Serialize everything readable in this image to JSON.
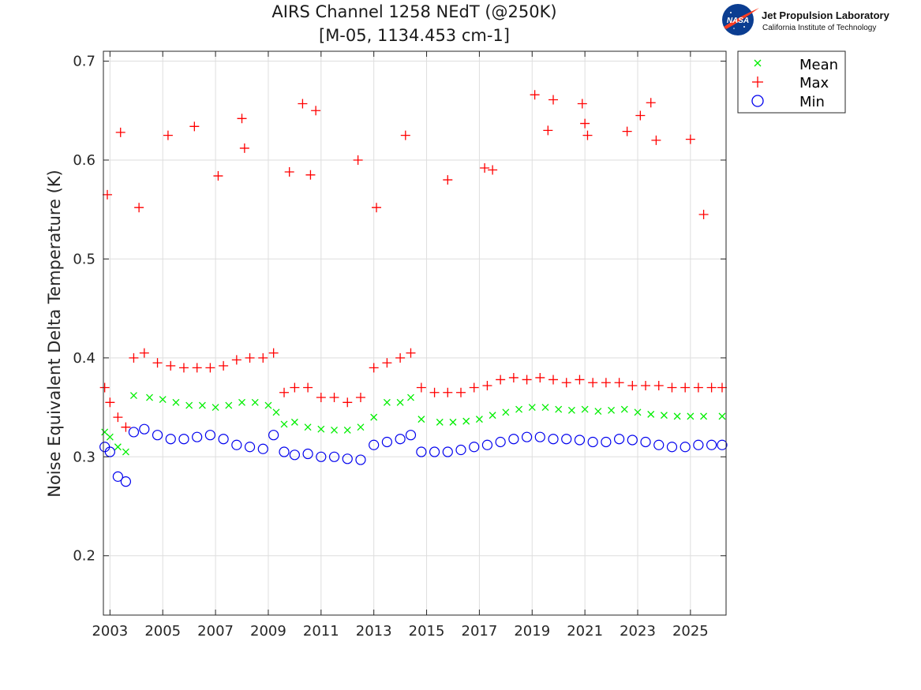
{
  "header": {
    "title_line1": "AIRS Channel 1258 NEdT (@250K)",
    "title_line2": "[M-05, 1134.453 cm-1]"
  },
  "logo": {
    "org_name": "Jet Propulsion Laboratory",
    "org_sub": "California Institute of Technology",
    "badge_text": "NASA",
    "colors": {
      "badge_blue": "#0b3d91",
      "swoosh_red": "#fc3d21"
    }
  },
  "chart_data": {
    "type": "scatter",
    "title": "AIRS Channel 1258 NEdT (@250K) [M-05, 1134.453 cm-1]",
    "xlabel": "",
    "ylabel": "Noise Equivalent Delta Temperature (K)",
    "xlim": [
      2002.75,
      2026.35
    ],
    "ylim": [
      0.14,
      0.71
    ],
    "x_ticks": [
      2003,
      2005,
      2007,
      2009,
      2011,
      2013,
      2015,
      2017,
      2019,
      2021,
      2023,
      2025
    ],
    "x_tick_labels": [
      "2003",
      "2005",
      "2007",
      "2009",
      "2011",
      "2013",
      "2015",
      "2017",
      "2019",
      "2021",
      "2023",
      "2025"
    ],
    "y_ticks": [
      0.2,
      0.3,
      0.4,
      0.5,
      0.6,
      0.7
    ],
    "y_tick_labels": [
      "0.2",
      "0.3",
      "0.4",
      "0.5",
      "0.6",
      "0.7"
    ],
    "grid": true,
    "legend_position": "top-right outside",
    "legend": [
      "Mean",
      "Max",
      "Min"
    ],
    "series": [
      {
        "name": "Mean",
        "marker": "x",
        "color": "#00ee00",
        "x": [
          2002.8,
          2003.0,
          2003.3,
          2003.6,
          2003.9,
          2004.5,
          2005.0,
          2005.5,
          2006.0,
          2006.5,
          2007.0,
          2007.5,
          2008.0,
          2008.5,
          2009.0,
          2009.3,
          2009.6,
          2010.0,
          2010.5,
          2011.0,
          2011.5,
          2012.0,
          2012.5,
          2013.0,
          2013.5,
          2014.0,
          2014.4,
          2014.8,
          2015.5,
          2016.0,
          2016.5,
          2017.0,
          2017.5,
          2018.0,
          2018.5,
          2019.0,
          2019.5,
          2020.0,
          2020.5,
          2021.0,
          2021.5,
          2022.0,
          2022.5,
          2023.0,
          2023.5,
          2024.0,
          2024.5,
          2025.0,
          2025.5,
          2026.2
        ],
        "y": [
          0.325,
          0.32,
          0.31,
          0.305,
          0.362,
          0.36,
          0.358,
          0.355,
          0.352,
          0.352,
          0.35,
          0.352,
          0.355,
          0.355,
          0.352,
          0.345,
          0.333,
          0.335,
          0.33,
          0.328,
          0.327,
          0.327,
          0.33,
          0.34,
          0.355,
          0.355,
          0.36,
          0.338,
          0.335,
          0.335,
          0.336,
          0.338,
          0.342,
          0.345,
          0.348,
          0.35,
          0.35,
          0.348,
          0.347,
          0.348,
          0.346,
          0.347,
          0.348,
          0.345,
          0.343,
          0.342,
          0.341,
          0.341,
          0.341,
          0.341
        ]
      },
      {
        "name": "Max",
        "marker": "+",
        "color": "#ff0000",
        "x": [
          2002.8,
          2003.0,
          2003.3,
          2003.6,
          2003.9,
          2004.3,
          2004.8,
          2005.3,
          2005.8,
          2006.3,
          2006.8,
          2007.3,
          2007.8,
          2008.3,
          2008.8,
          2009.2,
          2009.6,
          2010.0,
          2010.5,
          2011.0,
          2011.5,
          2012.0,
          2012.5,
          2013.0,
          2013.5,
          2014.0,
          2014.4,
          2014.8,
          2015.3,
          2015.8,
          2016.3,
          2016.8,
          2017.3,
          2017.8,
          2018.3,
          2018.8,
          2019.3,
          2019.8,
          2020.3,
          2020.8,
          2021.3,
          2021.8,
          2022.3,
          2022.8,
          2023.3,
          2023.8,
          2024.3,
          2024.8,
          2025.3,
          2025.8,
          2026.2,
          2002.9,
          2003.4,
          2004.1,
          2005.2,
          2006.2,
          2007.1,
          2008.0,
          2008.1,
          2009.8,
          2010.3,
          2010.6,
          2010.8,
          2012.4,
          2013.1,
          2014.2,
          2015.8,
          2017.2,
          2017.5,
          2019.1,
          2019.6,
          2019.8,
          2020.9,
          2021.0,
          2021.1,
          2022.6,
          2023.1,
          2023.5,
          2023.7,
          2025.0,
          2025.5
        ],
        "y": [
          0.37,
          0.355,
          0.34,
          0.33,
          0.4,
          0.405,
          0.395,
          0.392,
          0.39,
          0.39,
          0.39,
          0.392,
          0.398,
          0.4,
          0.4,
          0.405,
          0.365,
          0.37,
          0.37,
          0.36,
          0.36,
          0.355,
          0.36,
          0.39,
          0.395,
          0.4,
          0.405,
          0.37,
          0.365,
          0.365,
          0.365,
          0.37,
          0.372,
          0.378,
          0.38,
          0.378,
          0.38,
          0.378,
          0.375,
          0.378,
          0.375,
          0.375,
          0.375,
          0.372,
          0.372,
          0.372,
          0.37,
          0.37,
          0.37,
          0.37,
          0.37,
          0.565,
          0.628,
          0.552,
          0.625,
          0.634,
          0.584,
          0.642,
          0.612,
          0.588,
          0.657,
          0.585,
          0.65,
          0.6,
          0.552,
          0.625,
          0.58,
          0.592,
          0.59,
          0.666,
          0.63,
          0.661,
          0.657,
          0.637,
          0.625,
          0.629,
          0.645,
          0.658,
          0.62,
          0.621,
          0.545
        ]
      },
      {
        "name": "Min",
        "marker": "o",
        "color": "#0000ee",
        "x": [
          2002.8,
          2003.0,
          2003.3,
          2003.6,
          2003.9,
          2004.3,
          2004.8,
          2005.3,
          2005.8,
          2006.3,
          2006.8,
          2007.3,
          2007.8,
          2008.3,
          2008.8,
          2009.2,
          2009.6,
          2010.0,
          2010.5,
          2011.0,
          2011.5,
          2012.0,
          2012.5,
          2013.0,
          2013.5,
          2014.0,
          2014.4,
          2014.8,
          2015.3,
          2015.8,
          2016.3,
          2016.8,
          2017.3,
          2017.8,
          2018.3,
          2018.8,
          2019.3,
          2019.8,
          2020.3,
          2020.8,
          2021.3,
          2021.8,
          2022.3,
          2022.8,
          2023.3,
          2023.8,
          2024.3,
          2024.8,
          2025.3,
          2025.8,
          2026.2
        ],
        "y": [
          0.31,
          0.305,
          0.28,
          0.275,
          0.325,
          0.328,
          0.322,
          0.318,
          0.318,
          0.32,
          0.322,
          0.318,
          0.312,
          0.31,
          0.308,
          0.322,
          0.305,
          0.302,
          0.303,
          0.3,
          0.3,
          0.298,
          0.297,
          0.312,
          0.315,
          0.318,
          0.322,
          0.305,
          0.305,
          0.305,
          0.307,
          0.31,
          0.312,
          0.315,
          0.318,
          0.32,
          0.32,
          0.318,
          0.318,
          0.317,
          0.315,
          0.315,
          0.318,
          0.317,
          0.315,
          0.312,
          0.31,
          0.31,
          0.312,
          0.312,
          0.312
        ]
      }
    ]
  }
}
